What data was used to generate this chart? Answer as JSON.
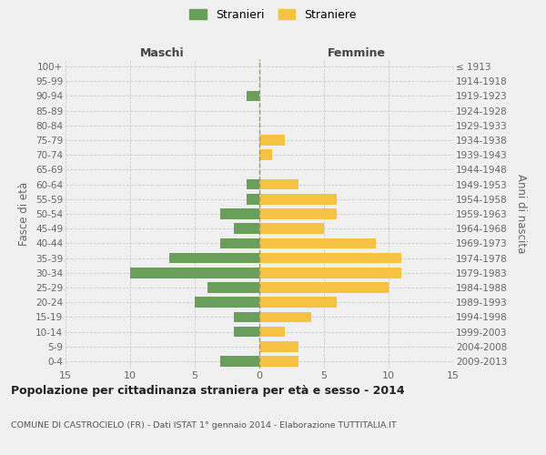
{
  "age_groups": [
    "100+",
    "95-99",
    "90-94",
    "85-89",
    "80-84",
    "75-79",
    "70-74",
    "65-69",
    "60-64",
    "55-59",
    "50-54",
    "45-49",
    "40-44",
    "35-39",
    "30-34",
    "25-29",
    "20-24",
    "15-19",
    "10-14",
    "5-9",
    "0-4"
  ],
  "birth_years": [
    "≤ 1913",
    "1914-1918",
    "1919-1923",
    "1924-1928",
    "1929-1933",
    "1934-1938",
    "1939-1943",
    "1944-1948",
    "1949-1953",
    "1954-1958",
    "1959-1963",
    "1964-1968",
    "1969-1973",
    "1974-1978",
    "1979-1983",
    "1984-1988",
    "1989-1993",
    "1994-1998",
    "1999-2003",
    "2004-2008",
    "2009-2013"
  ],
  "males": [
    0,
    0,
    1,
    0,
    0,
    0,
    0,
    0,
    1,
    1,
    3,
    2,
    3,
    7,
    10,
    4,
    5,
    2,
    2,
    0,
    3
  ],
  "females": [
    0,
    0,
    0,
    0,
    0,
    2,
    1,
    0,
    3,
    6,
    6,
    5,
    9,
    11,
    11,
    10,
    6,
    4,
    2,
    3,
    3
  ],
  "male_color": "#6a9e5b",
  "female_color": "#f5c242",
  "background_color": "#f0f0f0",
  "grid_color": "#cccccc",
  "title": "Popolazione per cittadinanza straniera per età e sesso - 2014",
  "subtitle": "COMUNE DI CASTROCIELO (FR) - Dati ISTAT 1° gennaio 2014 - Elaborazione TUTTITALIA.IT",
  "legend_stranieri": "Stranieri",
  "legend_straniere": "Straniere",
  "label_maschi": "Maschi",
  "label_femmine": "Femmine",
  "ylabel_left": "Fasce di età",
  "ylabel_right": "Anni di nascita",
  "xlim": 15
}
